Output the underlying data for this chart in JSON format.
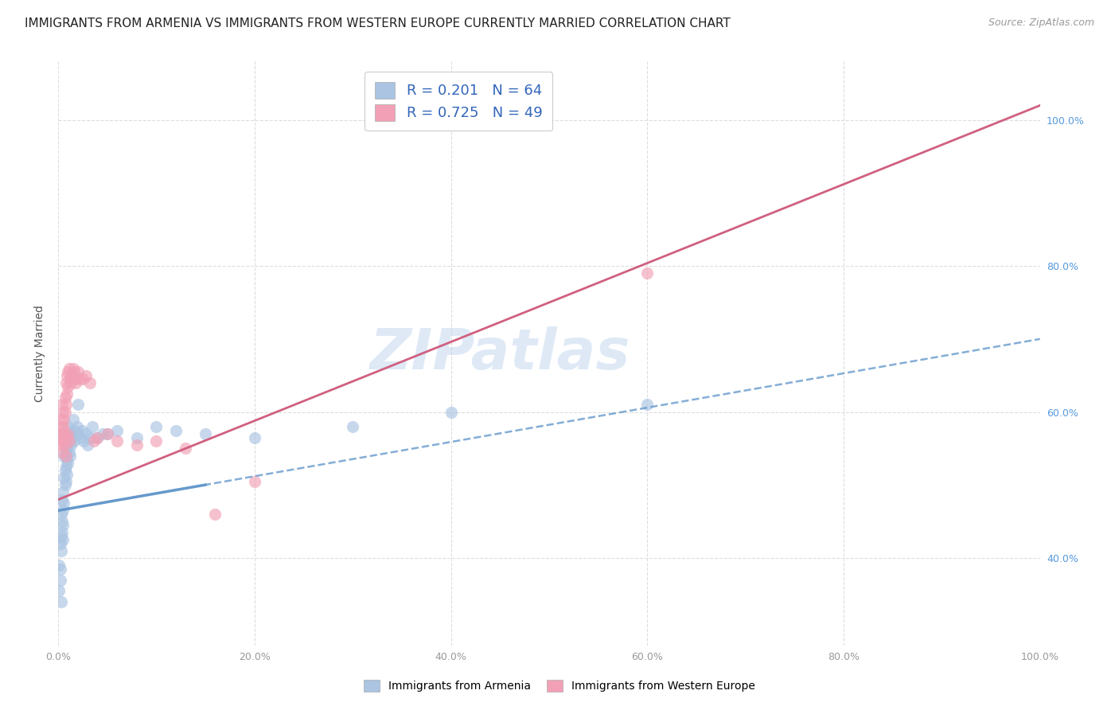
{
  "title": "IMMIGRANTS FROM ARMENIA VS IMMIGRANTS FROM WESTERN EUROPE CURRENTLY MARRIED CORRELATION CHART",
  "source": "Source: ZipAtlas.com",
  "ylabel": "Currently Married",
  "legend": {
    "series1_label": "Immigrants from Armenia",
    "series1_color": "#aac4e2",
    "series1_line_color": "#6699cc",
    "series1_R": "0.201",
    "series1_N": "64",
    "series2_label": "Immigrants from Western Europe",
    "series2_color": "#f2a0b5",
    "series2_line_color": "#d06080",
    "series2_R": "0.725",
    "series2_N": "49"
  },
  "blue_scatter_x": [
    0.001,
    0.002,
    0.002,
    0.003,
    0.003,
    0.003,
    0.004,
    0.004,
    0.004,
    0.005,
    0.005,
    0.005,
    0.005,
    0.006,
    0.006,
    0.006,
    0.007,
    0.007,
    0.007,
    0.008,
    0.008,
    0.008,
    0.009,
    0.009,
    0.01,
    0.01,
    0.01,
    0.011,
    0.011,
    0.012,
    0.012,
    0.013,
    0.013,
    0.014,
    0.015,
    0.015,
    0.016,
    0.017,
    0.018,
    0.019,
    0.02,
    0.022,
    0.024,
    0.026,
    0.028,
    0.03,
    0.032,
    0.035,
    0.04,
    0.045,
    0.05,
    0.06,
    0.08,
    0.1,
    0.12,
    0.15,
    0.2,
    0.3,
    0.4,
    0.6,
    0.001,
    0.002,
    0.003,
    0.02
  ],
  "blue_scatter_y": [
    0.39,
    0.385,
    0.42,
    0.43,
    0.46,
    0.41,
    0.435,
    0.45,
    0.48,
    0.425,
    0.445,
    0.465,
    0.49,
    0.51,
    0.54,
    0.475,
    0.5,
    0.52,
    0.545,
    0.505,
    0.525,
    0.55,
    0.515,
    0.535,
    0.53,
    0.555,
    0.58,
    0.545,
    0.565,
    0.54,
    0.56,
    0.555,
    0.575,
    0.565,
    0.57,
    0.59,
    0.56,
    0.575,
    0.57,
    0.58,
    0.57,
    0.565,
    0.575,
    0.56,
    0.57,
    0.555,
    0.565,
    0.58,
    0.565,
    0.57,
    0.57,
    0.575,
    0.565,
    0.58,
    0.575,
    0.57,
    0.565,
    0.58,
    0.6,
    0.61,
    0.355,
    0.37,
    0.34,
    0.61
  ],
  "pink_scatter_x": [
    0.002,
    0.003,
    0.003,
    0.004,
    0.004,
    0.005,
    0.005,
    0.006,
    0.006,
    0.007,
    0.007,
    0.008,
    0.008,
    0.009,
    0.009,
    0.01,
    0.01,
    0.011,
    0.012,
    0.013,
    0.014,
    0.015,
    0.016,
    0.017,
    0.018,
    0.02,
    0.022,
    0.025,
    0.028,
    0.032,
    0.036,
    0.04,
    0.05,
    0.06,
    0.08,
    0.1,
    0.13,
    0.16,
    0.2,
    0.003,
    0.004,
    0.005,
    0.006,
    0.007,
    0.008,
    0.009,
    0.01,
    0.011,
    0.6
  ],
  "pink_scatter_y": [
    0.57,
    0.56,
    0.59,
    0.58,
    0.61,
    0.6,
    0.58,
    0.59,
    0.57,
    0.6,
    0.62,
    0.61,
    0.64,
    0.625,
    0.65,
    0.635,
    0.655,
    0.66,
    0.645,
    0.64,
    0.65,
    0.66,
    0.655,
    0.645,
    0.64,
    0.655,
    0.645,
    0.645,
    0.65,
    0.64,
    0.56,
    0.565,
    0.57,
    0.56,
    0.555,
    0.56,
    0.55,
    0.46,
    0.505,
    0.555,
    0.545,
    0.56,
    0.57,
    0.555,
    0.54,
    0.565,
    0.57,
    0.56,
    0.79
  ],
  "blue_line_x": [
    0.0,
    1.0
  ],
  "blue_line_y": [
    0.465,
    0.7
  ],
  "pink_line_x": [
    0.0,
    1.0
  ],
  "pink_line_y": [
    0.48,
    1.02
  ],
  "xlim": [
    0.0,
    1.0
  ],
  "ylim": [
    0.28,
    1.08
  ],
  "x_ticks": [
    0.0,
    0.2,
    0.4,
    0.6,
    0.8,
    1.0
  ],
  "x_tick_labels": [
    "0.0%",
    "20.0%",
    "40.0%",
    "60.0%",
    "80.0%",
    "100.0%"
  ],
  "y_ticks": [
    0.4,
    0.6,
    0.8,
    1.0
  ],
  "y_tick_labels": [
    "40.0%",
    "60.0%",
    "80.0%",
    "100.0%"
  ],
  "grid_color": "#dddddd",
  "background_color": "#ffffff",
  "watermark": "ZIPatlas",
  "title_fontsize": 11,
  "source_fontsize": 9,
  "scatter_size": 120,
  "scatter_alpha": 0.65
}
